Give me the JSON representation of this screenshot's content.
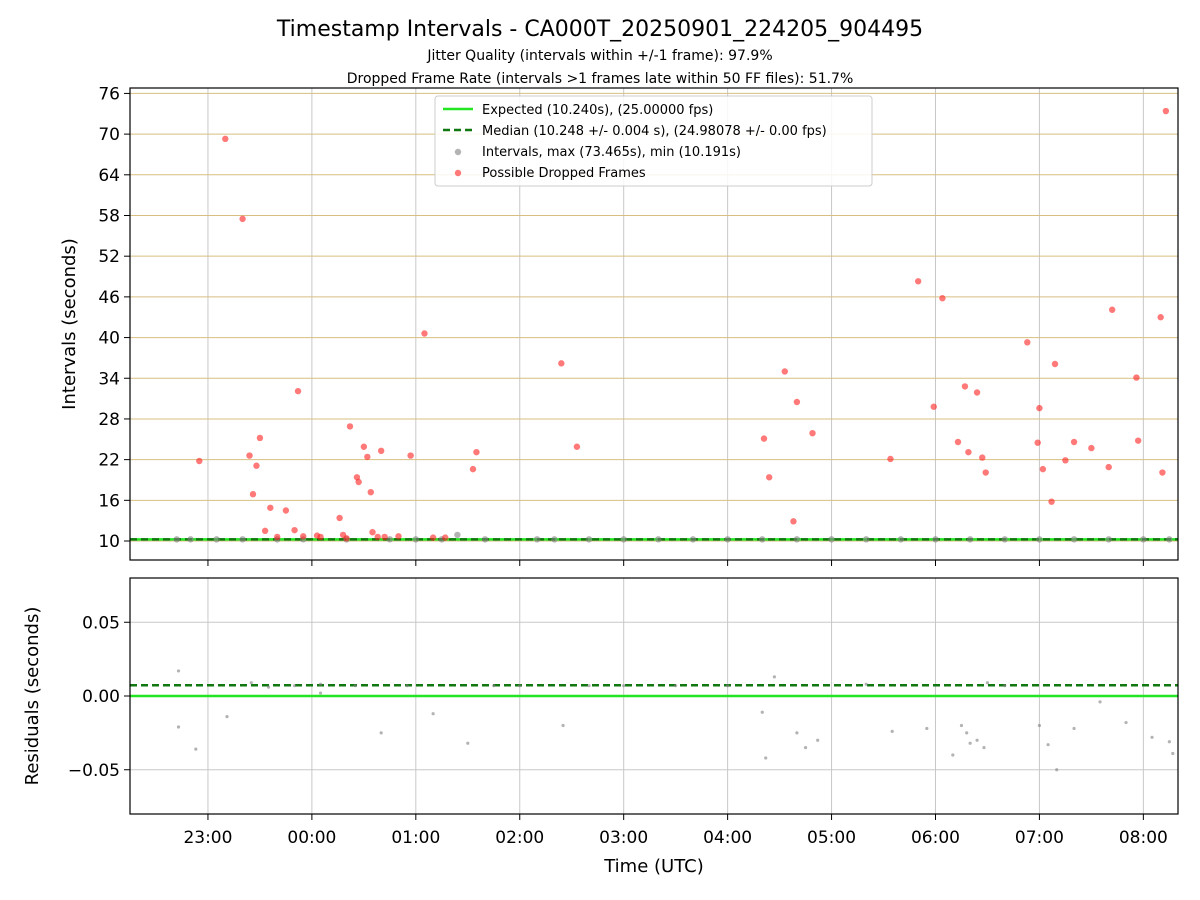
{
  "figure": {
    "title": "Timestamp Intervals - CA000T_20250901_224205_904495",
    "subtitle1": "Jitter Quality (intervals within +/-1 frame): 97.9%",
    "subtitle2": "Dropped Frame Rate (intervals >1 frames late within 50 FF files): 51.7%",
    "xlabel": "Time (UTC)"
  },
  "colors": {
    "expected": "#22e622",
    "median": "#117711",
    "intervals": "#808080",
    "dropped": "#ff2020",
    "hgrid_top": "#d8bf80",
    "grid": "#c8c8c8"
  },
  "chart_data": [
    {
      "type": "scatter",
      "ylabel": "Intervals (seconds)",
      "ylim": [
        7.2,
        76.8
      ],
      "xlim": [
        "22:15",
        "08:20"
      ],
      "grid": true,
      "legend_position": "top-center",
      "yticks": [
        10,
        16,
        22,
        28,
        34,
        40,
        46,
        52,
        58,
        64,
        70,
        76
      ],
      "xticks": [
        "23:00",
        "00:00",
        "01:00",
        "02:00",
        "03:00",
        "04:00",
        "05:00",
        "06:00",
        "07:00",
        "08:00"
      ],
      "lines": [
        {
          "name": "Expected (10.240s), (25.00000 fps)",
          "y": 10.24,
          "style": "solid"
        },
        {
          "name": "Median (10.248 +/- 0.004 s), (24.98078 +/- 0.00 fps)",
          "y": 10.248,
          "style": "dashed"
        }
      ],
      "series": [
        {
          "name": "Intervals, max (73.465s), min (10.191s)",
          "marker": "grey",
          "x": [
            "22:42",
            "22:50",
            "23:05",
            "23:20",
            "23:40",
            "23:55",
            "00:20",
            "00:45",
            "01:00",
            "01:15",
            "01:24",
            "01:40",
            "02:10",
            "02:20",
            "02:40",
            "03:00",
            "03:20",
            "03:40",
            "04:00",
            "04:20",
            "04:40",
            "05:00",
            "05:20",
            "05:40",
            "06:00",
            "06:20",
            "06:40",
            "07:00",
            "07:20",
            "07:40",
            "08:00",
            "08:15"
          ],
          "y": [
            10.24,
            10.25,
            10.24,
            10.25,
            10.24,
            10.25,
            10.24,
            10.25,
            10.24,
            10.25,
            10.9,
            10.24,
            10.25,
            10.24,
            10.25,
            10.24,
            10.25,
            10.24,
            10.25,
            10.24,
            10.25,
            10.24,
            10.25,
            10.24,
            10.25,
            10.24,
            10.25,
            10.24,
            10.25,
            10.24,
            10.25,
            10.24
          ]
        },
        {
          "name": "Possible Dropped Frames",
          "marker": "red",
          "x": [
            "22:55",
            "23:10",
            "23:20",
            "23:24",
            "23:26",
            "23:28",
            "23:30",
            "23:33",
            "23:36",
            "23:40",
            "23:45",
            "23:50",
            "23:52",
            "23:55",
            "00:03",
            "00:05",
            "00:16",
            "00:18",
            "00:20",
            "00:22",
            "00:26",
            "00:27",
            "00:30",
            "00:32",
            "00:34",
            "00:35",
            "00:38",
            "00:40",
            "00:42",
            "00:50",
            "00:57",
            "01:05",
            "01:10",
            "01:17",
            "01:33",
            "01:35",
            "02:24",
            "02:33",
            "04:21",
            "04:24",
            "04:33",
            "04:38",
            "04:40",
            "04:49",
            "05:34",
            "05:50",
            "05:59",
            "06:04",
            "06:13",
            "06:17",
            "06:19",
            "06:24",
            "06:27",
            "06:29",
            "06:53",
            "06:59",
            "07:00",
            "07:02",
            "07:07",
            "07:09",
            "07:15",
            "07:20",
            "07:30",
            "07:40",
            "07:42",
            "07:56",
            "07:57",
            "08:10",
            "08:11",
            "08:13"
          ],
          "y": [
            21.8,
            69.3,
            57.5,
            22.6,
            16.9,
            21.1,
            25.2,
            11.5,
            14.9,
            10.6,
            14.5,
            11.6,
            32.1,
            10.7,
            10.8,
            10.6,
            13.4,
            10.9,
            10.4,
            26.9,
            19.4,
            18.7,
            23.9,
            22.4,
            17.2,
            11.3,
            10.6,
            23.3,
            10.6,
            10.7,
            22.6,
            40.6,
            10.5,
            10.5,
            20.6,
            23.1,
            36.2,
            23.9,
            25.1,
            19.4,
            35.0,
            12.9,
            30.5,
            25.9,
            22.1,
            48.3,
            29.8,
            45.8,
            24.6,
            32.8,
            23.1,
            31.9,
            22.3,
            20.1,
            39.3,
            24.5,
            29.6,
            20.6,
            15.8,
            36.1,
            21.9,
            24.6,
            23.7,
            20.9,
            44.1,
            34.1,
            24.8,
            43.0,
            20.1,
            73.4
          ]
        }
      ]
    },
    {
      "type": "scatter",
      "ylabel": "Residuals (seconds)",
      "ylim": [
        -0.08,
        0.08
      ],
      "xlim": [
        "22:15",
        "08:20"
      ],
      "grid": true,
      "yticks": [
        0.05,
        0.0,
        -0.05
      ],
      "ytick_labels": [
        "0.05",
        "0.00",
        "−0.05"
      ],
      "xticks": [
        "23:00",
        "00:00",
        "01:00",
        "02:00",
        "03:00",
        "04:00",
        "05:00",
        "06:00",
        "07:00",
        "08:00"
      ],
      "lines": [
        {
          "name": "Expected",
          "y": 0.0,
          "style": "solid"
        },
        {
          "name": "Median",
          "y": 0.0073,
          "style": "dashed"
        }
      ],
      "series": [
        {
          "name": "Residuals",
          "x": [
            "22:43",
            "22:43",
            "22:53",
            "23:11",
            "23:25",
            "23:35",
            "23:50",
            "00:05",
            "00:05",
            "00:25",
            "00:40",
            "00:55",
            "01:10",
            "01:30",
            "01:45",
            "02:00",
            "02:25",
            "02:40",
            "03:00",
            "03:30",
            "04:00",
            "04:20",
            "04:22",
            "04:27",
            "04:40",
            "04:45",
            "04:52",
            "05:20",
            "05:35",
            "05:55",
            "06:10",
            "06:15",
            "06:18",
            "06:20",
            "06:24",
            "06:28",
            "06:30",
            "06:40",
            "07:00",
            "07:05",
            "07:10",
            "07:20",
            "07:35",
            "07:50",
            "08:05",
            "08:15",
            "08:17"
          ],
          "y": [
            0.017,
            -0.021,
            -0.036,
            -0.014,
            0.009,
            0.006,
            0.007,
            0.008,
            0.002,
            0.007,
            -0.025,
            0.007,
            -0.012,
            -0.032,
            0.007,
            0.007,
            -0.02,
            0.007,
            0.007,
            0.007,
            0.007,
            -0.011,
            -0.042,
            0.013,
            -0.025,
            -0.035,
            -0.03,
            0.008,
            -0.024,
            -0.022,
            -0.04,
            -0.02,
            -0.025,
            -0.032,
            -0.03,
            -0.035,
            0.009,
            0.007,
            -0.02,
            -0.033,
            -0.05,
            -0.022,
            -0.004,
            -0.018,
            -0.028,
            -0.031,
            -0.039
          ]
        }
      ]
    }
  ]
}
